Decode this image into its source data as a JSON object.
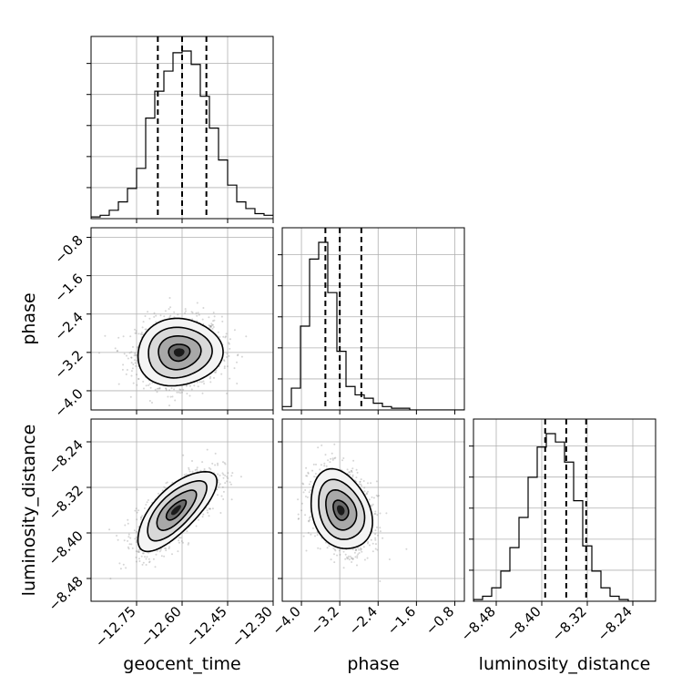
{
  "chart_data": {
    "type": "corner",
    "parameters": [
      "geocent_time",
      "phase",
      "luminosity_distance"
    ],
    "axis_labels": {
      "geocent_time": "geocent_time",
      "phase": "phase",
      "luminosity_distance": "luminosity_distance"
    },
    "ticks": {
      "geocent_time": [
        -12.75,
        -12.6,
        -12.45,
        -12.3
      ],
      "phase": [
        -4.0,
        -3.2,
        -2.4,
        -1.6,
        -0.8
      ],
      "luminosity_distance": [
        -8.48,
        -8.4,
        -8.32,
        -8.24
      ]
    },
    "tick_labels": {
      "geocent_time": [
        "−12.75",
        "−12.60",
        "−12.45",
        "−12.30"
      ],
      "phase": [
        "−4.0",
        "−3.2",
        "−2.4",
        "−1.6",
        "−0.8"
      ],
      "luminosity_distance": [
        "−8.48",
        "−8.40",
        "−8.32",
        "−8.24"
      ]
    },
    "ranges": {
      "geocent_time": [
        -12.9,
        -12.3
      ],
      "phase": [
        -4.4,
        -0.6
      ],
      "luminosity_distance": [
        -8.52,
        -8.2
      ]
    },
    "quantiles": {
      "geocent_time": [
        -12.68,
        -12.6,
        -12.52
      ],
      "phase": [
        -3.5,
        -3.2,
        -2.75
      ],
      "luminosity_distance": [
        -8.394,
        -8.357,
        -8.322
      ]
    },
    "histograms": {
      "geocent_time": {
        "edges_start": -12.9,
        "bin_width": 0.03,
        "counts": [
          1,
          2,
          5,
          10,
          18,
          30,
          60,
          76,
          88,
          99,
          100,
          92,
          73,
          54,
          35,
          20,
          10,
          6,
          3,
          2
        ]
      },
      "phase": {
        "edges_start": -4.4,
        "bin_width": 0.19,
        "counts": [
          2,
          13,
          50,
          90,
          100,
          70,
          35,
          14,
          9,
          7,
          4,
          2,
          1,
          1,
          0,
          0,
          0,
          0,
          0,
          0
        ]
      },
      "luminosity_distance": {
        "edges_start": -8.52,
        "bin_width": 0.016,
        "counts": [
          1,
          3,
          8,
          18,
          32,
          50,
          74,
          92,
          100,
          95,
          83,
          60,
          33,
          18,
          8,
          3,
          1,
          0,
          0,
          0
        ]
      }
    },
    "pairs": [
      {
        "x": "geocent_time",
        "y": "phase",
        "mean": [
          -12.61,
          -3.2
        ],
        "sd": [
          0.07,
          0.35
        ],
        "rho": 0.05
      },
      {
        "x": "geocent_time",
        "y": "luminosity_distance",
        "mean": [
          -12.62,
          -8.36
        ],
        "sd": [
          0.065,
          0.035
        ],
        "rho": 0.72
      },
      {
        "x": "phase",
        "y": "luminosity_distance",
        "mean": [
          -3.18,
          -8.36
        ],
        "sd": [
          0.32,
          0.035
        ],
        "rho": -0.25
      }
    ],
    "grid": true
  }
}
